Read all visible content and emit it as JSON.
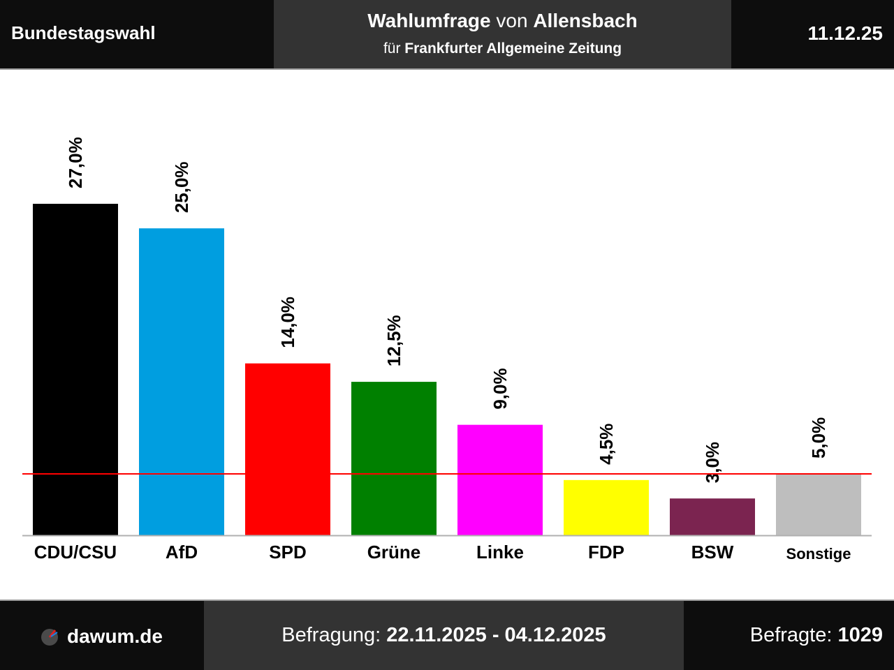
{
  "header": {
    "section": "Bundestagswahl",
    "title_main": "Wahlumfrage",
    "title_connector": "von",
    "title_institute": "Allensbach",
    "subtitle_prefix": "für",
    "subtitle_client": "Frankfurter Allgemeine Zeitung",
    "date": "11.12.25"
  },
  "footer": {
    "brand": "dawum.de",
    "period_label": "Befragung:",
    "period_value": "22.11.2025 - 04.12.2025",
    "respondents_label": "Befragte:",
    "respondents_value": "1029"
  },
  "chart_data": {
    "type": "bar",
    "categories": [
      "CDU/CSU",
      "AfD",
      "SPD",
      "Grüne",
      "Linke",
      "FDP",
      "BSW",
      "Sonstige"
    ],
    "values": [
      27.0,
      25.0,
      14.0,
      12.5,
      9.0,
      4.5,
      3.0,
      5.0
    ],
    "value_labels": [
      "27,0%",
      "25,0%",
      "14,0%",
      "12,5%",
      "9,0%",
      "4,5%",
      "3,0%",
      "5,0%"
    ],
    "colors": [
      "#000000",
      "#009ee0",
      "#ff0000",
      "#008000",
      "#ff00ff",
      "#ffff00",
      "#7b2450",
      "#bebebe"
    ],
    "threshold": 5.0,
    "threshold_color": "#ff0000",
    "ylim": [
      0,
      27.0
    ],
    "grid": false,
    "legend": "none",
    "title": "",
    "xlabel": "",
    "ylabel": ""
  }
}
